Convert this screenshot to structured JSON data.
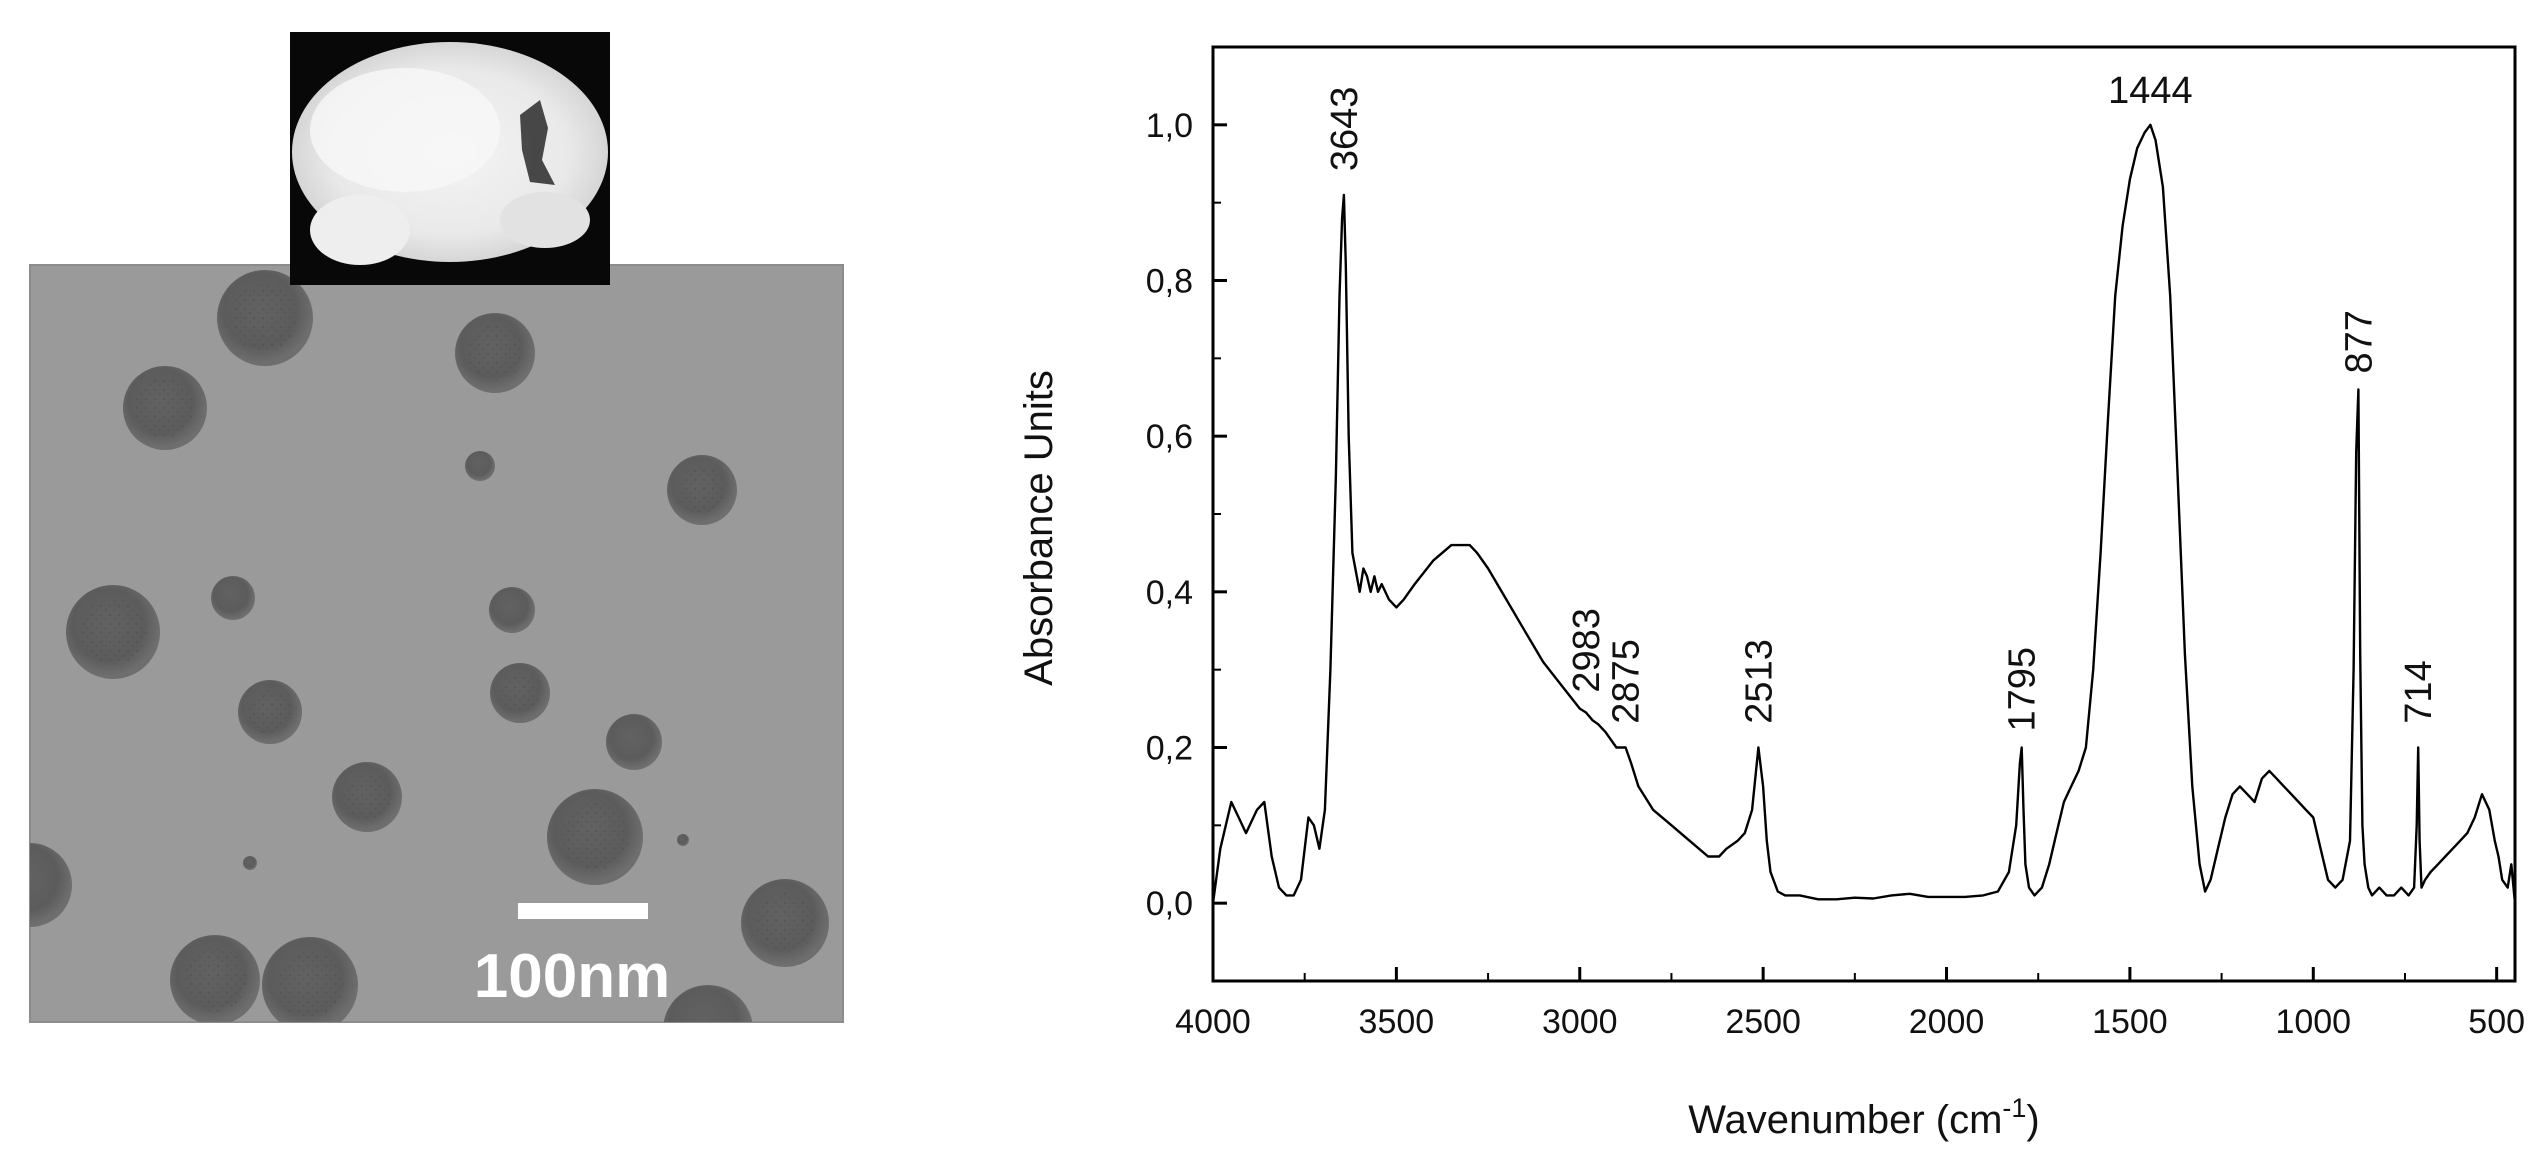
{
  "panel_a": {
    "scale_bar_label": "100nm"
  },
  "chart_data": {
    "type": "line",
    "title": "",
    "xlabel": "Wavenumber (cm",
    "xlabel_superscript": "-1",
    "xlabel_suffix": ")",
    "ylabel": "Absorbance Units",
    "xlim": [
      4000,
      450
    ],
    "x_reversed": true,
    "ylim": [
      -0.1,
      1.1
    ],
    "grid": false,
    "legend": "none",
    "x_ticks": [
      4000,
      3500,
      3000,
      2500,
      2000,
      1500,
      1000,
      500
    ],
    "x_tick_labels": [
      "4000",
      "3500",
      "3000",
      "2500",
      "2000",
      "1500",
      "1000",
      "500"
    ],
    "y_ticks": [
      0.0,
      0.2,
      0.4,
      0.6,
      0.8,
      1.0
    ],
    "y_tick_labels": [
      "0,0",
      "0,2",
      "0,4",
      "0,6",
      "0,8",
      "1,0"
    ],
    "annotations": [
      {
        "label": "3643",
        "x": 3643,
        "y": 0.92
      },
      {
        "label": "2983",
        "x": 2983,
        "y": 0.25
      },
      {
        "label": "2875",
        "x": 2875,
        "y": 0.21
      },
      {
        "label": "2513",
        "x": 2513,
        "y": 0.21
      },
      {
        "label": "1795",
        "x": 1795,
        "y": 0.2
      },
      {
        "label": "1444",
        "x": 1444,
        "y": 1.0
      },
      {
        "label": "877",
        "x": 877,
        "y": 0.66
      },
      {
        "label": "714",
        "x": 714,
        "y": 0.21
      }
    ],
    "series": [
      {
        "color": "#000000",
        "x": [
          4000,
          3980,
          3950,
          3930,
          3910,
          3880,
          3860,
          3840,
          3820,
          3800,
          3780,
          3760,
          3740,
          3725,
          3710,
          3695,
          3680,
          3665,
          3655,
          3648,
          3643,
          3638,
          3630,
          3620,
          3600,
          3590,
          3580,
          3570,
          3560,
          3550,
          3540,
          3520,
          3500,
          3480,
          3450,
          3400,
          3350,
          3320,
          3300,
          3280,
          3250,
          3200,
          3150,
          3100,
          3050,
          3000,
          2983,
          2965,
          2950,
          2930,
          2900,
          2875,
          2860,
          2840,
          2800,
          2750,
          2700,
          2650,
          2620,
          2600,
          2570,
          2550,
          2530,
          2513,
          2500,
          2490,
          2480,
          2460,
          2440,
          2400,
          2350,
          2300,
          2250,
          2200,
          2150,
          2100,
          2050,
          2000,
          1950,
          1900,
          1860,
          1830,
          1810,
          1800,
          1795,
          1790,
          1785,
          1775,
          1760,
          1740,
          1720,
          1700,
          1680,
          1660,
          1640,
          1620,
          1600,
          1580,
          1560,
          1540,
          1520,
          1500,
          1480,
          1460,
          1444,
          1430,
          1410,
          1390,
          1370,
          1350,
          1330,
          1310,
          1295,
          1280,
          1260,
          1240,
          1220,
          1200,
          1180,
          1160,
          1140,
          1120,
          1100,
          1080,
          1060,
          1040,
          1020,
          1000,
          980,
          960,
          940,
          920,
          900,
          890,
          883,
          877,
          872,
          866,
          860,
          850,
          840,
          820,
          800,
          780,
          760,
          740,
          725,
          718,
          714,
          710,
          705,
          695,
          680,
          660,
          640,
          620,
          600,
          580,
          560,
          540,
          520,
          505,
          495,
          485,
          470,
          460,
          450
        ],
        "y": [
          0.0,
          0.07,
          0.13,
          0.11,
          0.09,
          0.12,
          0.13,
          0.06,
          0.02,
          0.01,
          0.01,
          0.03,
          0.11,
          0.1,
          0.07,
          0.12,
          0.3,
          0.55,
          0.78,
          0.88,
          0.91,
          0.82,
          0.6,
          0.45,
          0.4,
          0.43,
          0.42,
          0.4,
          0.42,
          0.4,
          0.41,
          0.39,
          0.38,
          0.39,
          0.41,
          0.44,
          0.46,
          0.46,
          0.46,
          0.45,
          0.43,
          0.39,
          0.35,
          0.31,
          0.28,
          0.25,
          0.245,
          0.235,
          0.23,
          0.22,
          0.2,
          0.2,
          0.18,
          0.15,
          0.12,
          0.1,
          0.08,
          0.06,
          0.06,
          0.07,
          0.08,
          0.09,
          0.12,
          0.2,
          0.15,
          0.08,
          0.04,
          0.015,
          0.01,
          0.01,
          0.005,
          0.005,
          0.007,
          0.006,
          0.01,
          0.012,
          0.008,
          0.008,
          0.008,
          0.01,
          0.015,
          0.04,
          0.1,
          0.18,
          0.2,
          0.12,
          0.05,
          0.02,
          0.01,
          0.02,
          0.05,
          0.09,
          0.13,
          0.15,
          0.17,
          0.2,
          0.3,
          0.45,
          0.62,
          0.78,
          0.87,
          0.93,
          0.97,
          0.99,
          1.0,
          0.98,
          0.92,
          0.78,
          0.55,
          0.32,
          0.15,
          0.05,
          0.015,
          0.03,
          0.07,
          0.11,
          0.14,
          0.15,
          0.14,
          0.13,
          0.16,
          0.17,
          0.16,
          0.15,
          0.14,
          0.13,
          0.12,
          0.11,
          0.07,
          0.03,
          0.02,
          0.03,
          0.08,
          0.3,
          0.58,
          0.66,
          0.32,
          0.1,
          0.05,
          0.02,
          0.01,
          0.02,
          0.01,
          0.01,
          0.02,
          0.01,
          0.02,
          0.1,
          0.2,
          0.08,
          0.02,
          0.03,
          0.04,
          0.05,
          0.06,
          0.07,
          0.08,
          0.09,
          0.11,
          0.14,
          0.12,
          0.08,
          0.06,
          0.03,
          0.02,
          0.05,
          0.0
        ]
      }
    ]
  }
}
